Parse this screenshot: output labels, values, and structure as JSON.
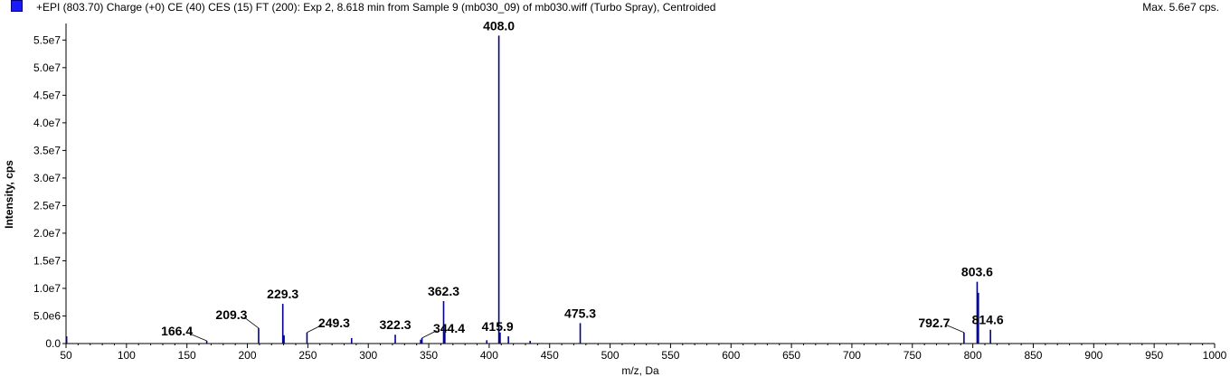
{
  "header": {
    "title": "+EPI (803.70) Charge (+0) CE (40) CES (15) FT (200): Exp 2, 8.618 min from Sample 9 (mb030_09) of mb030.wiff (Turbo Spray), Centroided",
    "max_label": "Max. 5.6e7 cps.",
    "series_color": "#1a1aff"
  },
  "chart_data": {
    "type": "bar",
    "title": "+EPI (803.70) Charge (+0) CE (40) CES (15) FT (200): Exp 2, 8.618 min from Sample 9 (mb030_09) of mb030.wiff (Turbo Spray), Centroided",
    "xlabel": "m/z, Da",
    "ylabel": "Intensity, cps",
    "xlim": [
      50,
      1000
    ],
    "ylim": [
      0,
      58000000
    ],
    "grid": false,
    "x_ticks": [
      50,
      100,
      150,
      200,
      250,
      300,
      350,
      400,
      450,
      500,
      550,
      600,
      650,
      700,
      750,
      800,
      850,
      900,
      950,
      1000
    ],
    "x_tick_labels": [
      "50",
      "100",
      "150",
      "200",
      "250",
      "300",
      "350",
      "400",
      "450",
      "500",
      "550",
      "600",
      "650",
      "700",
      "750",
      "800",
      "850",
      "900",
      "950",
      "1000"
    ],
    "y_ticks": [
      0,
      5000000,
      10000000,
      15000000,
      20000000,
      25000000,
      30000000,
      35000000,
      40000000,
      45000000,
      50000000,
      55000000
    ],
    "y_tick_labels": [
      "0.0",
      "5.0e6",
      "1.0e7",
      "1.5e7",
      "2.0e7",
      "2.5e7",
      "3.0e7",
      "3.5e7",
      "4.0e7",
      "4.5e7",
      "5.0e7",
      "5.5e7"
    ],
    "series": [
      {
        "color": "#00008b",
        "points": [
          {
            "x": 50.5,
            "y": 1300000
          },
          {
            "x": 166.4,
            "y": 500000
          },
          {
            "x": 209.3,
            "y": 2800000
          },
          {
            "x": 229.3,
            "y": 7200000
          },
          {
            "x": 230.3,
            "y": 1500000
          },
          {
            "x": 249.3,
            "y": 2000000
          },
          {
            "x": 286.2,
            "y": 1000000
          },
          {
            "x": 322.3,
            "y": 1600000
          },
          {
            "x": 343.3,
            "y": 700000
          },
          {
            "x": 344.4,
            "y": 1000000
          },
          {
            "x": 362.3,
            "y": 7700000
          },
          {
            "x": 363.3,
            "y": 2000000
          },
          {
            "x": 398.0,
            "y": 600000
          },
          {
            "x": 408.0,
            "y": 55800000
          },
          {
            "x": 409.0,
            "y": 2000000
          },
          {
            "x": 415.9,
            "y": 1300000
          },
          {
            "x": 433.9,
            "y": 500000
          },
          {
            "x": 475.3,
            "y": 3700000
          },
          {
            "x": 792.7,
            "y": 2000000
          },
          {
            "x": 803.6,
            "y": 11200000
          },
          {
            "x": 804.6,
            "y": 9200000
          },
          {
            "x": 814.6,
            "y": 2500000
          }
        ]
      }
    ],
    "annotations": [
      {
        "text": "166.4",
        "x": 166.4
      },
      {
        "text": "209.3",
        "x": 209.3
      },
      {
        "text": "229.3",
        "x": 229.3
      },
      {
        "text": "249.3",
        "x": 249.3
      },
      {
        "text": "322.3",
        "x": 322.3
      },
      {
        "text": "344.4",
        "x": 344.4
      },
      {
        "text": "362.3",
        "x": 362.3
      },
      {
        "text": "408.0",
        "x": 408.0
      },
      {
        "text": "415.9",
        "x": 415.9
      },
      {
        "text": "475.3",
        "x": 475.3
      },
      {
        "text": "792.7",
        "x": 792.7
      },
      {
        "text": "803.6",
        "x": 803.6
      },
      {
        "text": "814.6",
        "x": 814.6
      }
    ]
  }
}
